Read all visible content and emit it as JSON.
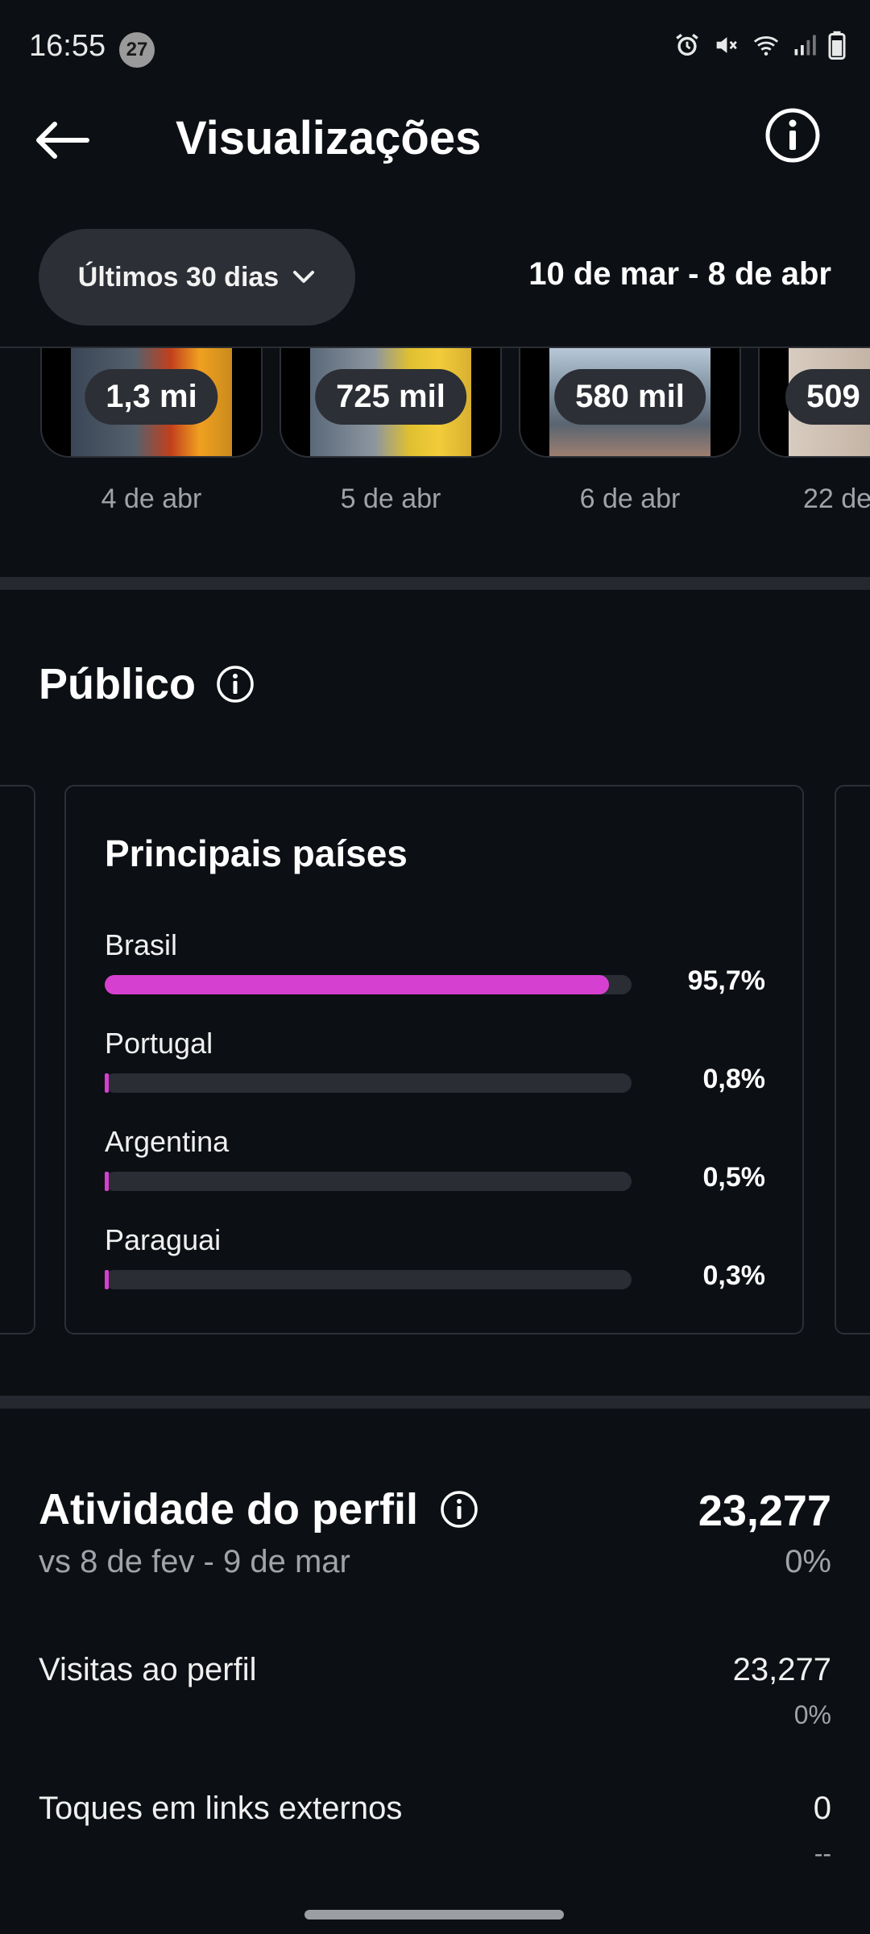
{
  "status_bar": {
    "time": "16:55",
    "notification_count": "27",
    "icons": [
      "alarm-icon",
      "mute-icon",
      "wifi-icon",
      "signal-icon",
      "battery-icon"
    ]
  },
  "header": {
    "title": "Visualizações",
    "back_icon": "arrow-left-icon",
    "info_icon": "info-icon"
  },
  "filter": {
    "range_label": "Últimos 30 dias",
    "date_range": "10 de mar - 8 de abr"
  },
  "top_posts": [
    {
      "count": "1,3 mi",
      "date": "4 de abr"
    },
    {
      "count": "725 mil",
      "date": "5 de abr"
    },
    {
      "count": "580 mil",
      "date": "6 de abr"
    },
    {
      "count": "509",
      "date": "22 de"
    }
  ],
  "audience": {
    "title": "Público",
    "countries_card": {
      "title": "Principais países",
      "countries": [
        {
          "name": "Brasil",
          "percent_label": "95,7%",
          "percent": 95.7
        },
        {
          "name": "Portugal",
          "percent_label": "0,8%",
          "percent": 0.8
        },
        {
          "name": "Argentina",
          "percent_label": "0,5%",
          "percent": 0.5
        },
        {
          "name": "Paraguai",
          "percent_label": "0,3%",
          "percent": 0.3
        }
      ]
    }
  },
  "profile_activity": {
    "title": "Atividade do perfil",
    "comparison": "vs 8 de fev - 9 de mar",
    "total": "23,277",
    "total_change": "0%",
    "metrics": [
      {
        "label": "Visitas ao perfil",
        "value": "23,277",
        "change": "0%"
      },
      {
        "label": "Toques em links externos",
        "value": "0",
        "change": "--"
      }
    ]
  },
  "colors": {
    "background": "#0c0f14",
    "bar_accent": "#d640d0",
    "pill_bg": "#2c2f35"
  }
}
